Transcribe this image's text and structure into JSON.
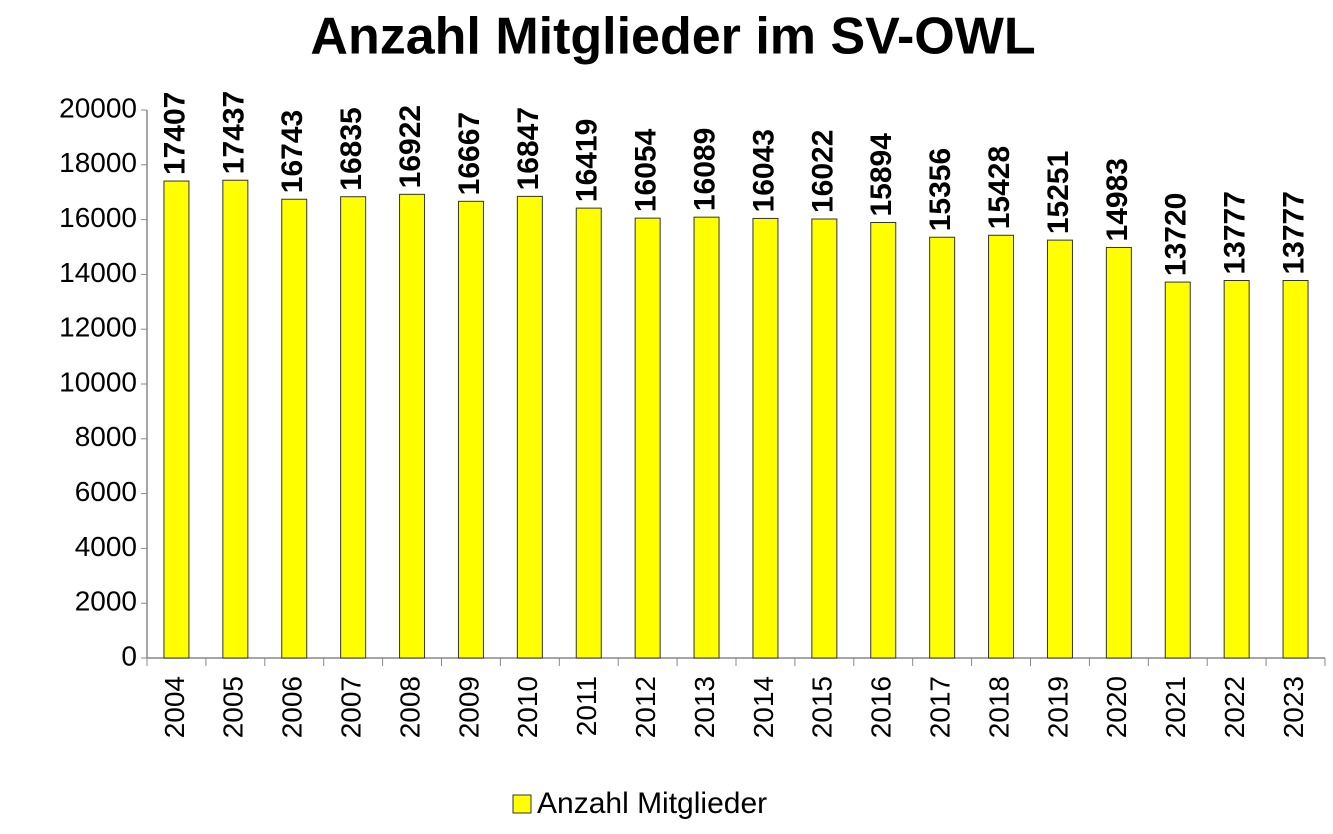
{
  "chart_data": {
    "type": "bar",
    "title": "Anzahl Mitglieder im SV-OWL",
    "categories": [
      "2004",
      "2005",
      "2006",
      "2007",
      "2008",
      "2009",
      "2010",
      "2011",
      "2012",
      "2013",
      "2014",
      "2015",
      "2016",
      "2017",
      "2018",
      "2019",
      "2020",
      "2021",
      "2022",
      "2023"
    ],
    "series": [
      {
        "name": "Anzahl Mitglieder",
        "color": "#ffff00",
        "values": [
          17407,
          17437,
          16743,
          16835,
          16922,
          16667,
          16847,
          16419,
          16054,
          16089,
          16043,
          16022,
          15894,
          15356,
          15428,
          15251,
          14983,
          13720,
          13777,
          13777
        ]
      }
    ],
    "ylim": [
      0,
      20000
    ],
    "yticks": [
      0,
      2000,
      4000,
      6000,
      8000,
      10000,
      12000,
      14000,
      16000,
      18000,
      20000
    ],
    "grid": false,
    "legend": "bottom"
  }
}
